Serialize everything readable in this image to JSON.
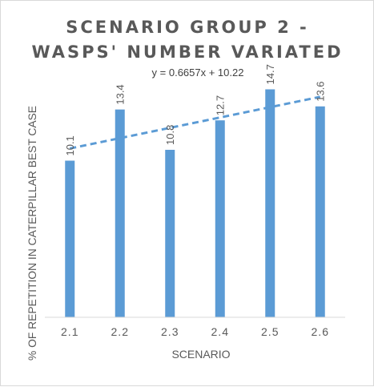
{
  "chart_data": {
    "type": "bar",
    "title_line1": "SCENARIO GROUP 2 -",
    "title_line2": "WASPS' NUMBER VARIATED",
    "xlabel": "SCENARIO",
    "ylabel": "% OF REPETITION IN CATERPILLAR BEST CASE",
    "categories": [
      "2.1",
      "2.2",
      "2.3",
      "2.4",
      "2.5",
      "2.6"
    ],
    "values": [
      10.1,
      13.4,
      10.8,
      12.7,
      14.7,
      13.6
    ],
    "ylim": [
      0,
      15.5
    ],
    "bar_color": "#5b9bd5",
    "trendline": {
      "type": "linear",
      "slope": 0.6657,
      "intercept": 10.22,
      "equation": "y = 0.6657x + 10.22",
      "style": "dashed",
      "color": "#5b9bd5"
    },
    "grid": false,
    "legend": "none"
  }
}
